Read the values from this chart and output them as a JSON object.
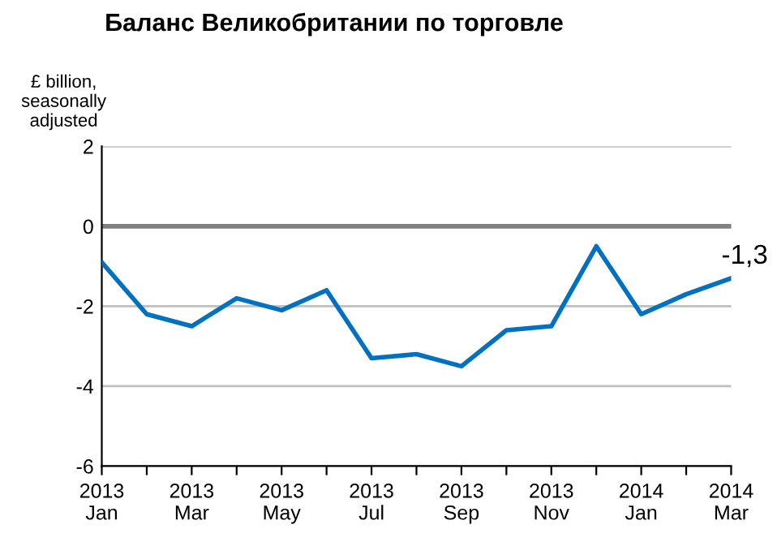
{
  "chart_data": {
    "type": "line",
    "title": "Баланс Великобритании по торговле",
    "ylabel": "£ billion,\nseasonally\nadjusted",
    "categories": [
      "2013\nJan",
      null,
      "2013\nMar",
      null,
      "2013\nMay",
      null,
      "2013\nJul",
      null,
      "2013\nSep",
      null,
      "2013\nNov",
      null,
      "2014\nJan",
      null,
      "2014\nMar"
    ],
    "series": [
      {
        "color": "#0070c0",
        "values": [
          -0.9,
          -2.2,
          -2.5,
          -1.8,
          -2.1,
          -1.6,
          -3.3,
          -3.2,
          -3.5,
          -2.6,
          -2.5,
          -0.5,
          -2.2,
          -1.7,
          -1.3
        ],
        "value_labels": [
          null,
          null,
          null,
          null,
          null,
          null,
          null,
          null,
          null,
          null,
          null,
          null,
          null,
          null,
          "-1,3"
        ]
      }
    ],
    "ylim": [
      -6,
      2
    ],
    "yticks": [
      {
        "value": -6,
        "label": "-6"
      },
      {
        "value": -4,
        "label": "-4"
      },
      {
        "value": -2,
        "label": "-2"
      },
      0,
      2
    ],
    "grid": "y",
    "legend": false,
    "marker": "none",
    "line_style": "solid",
    "ref_lines": [
      {
        "axis": "y",
        "value": 0,
        "label": null,
        "color": "#808080"
      }
    ]
  }
}
